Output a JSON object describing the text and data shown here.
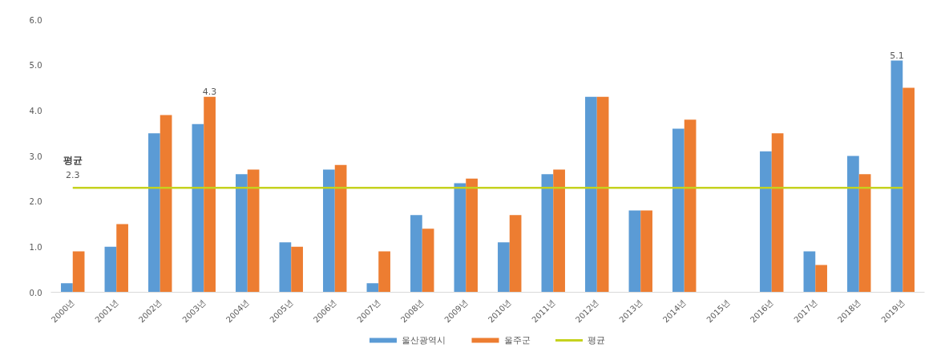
{
  "chart_data": {
    "type": "bar",
    "categories": [
      "2000년",
      "2001년",
      "2002년",
      "2003년",
      "2004년",
      "2005년",
      "2006년",
      "2007년",
      "2008년",
      "2009년",
      "2010년",
      "2011년",
      "2012년",
      "2013년",
      "2014년",
      "2015년",
      "2016년",
      "2017년",
      "2018년",
      "2019년"
    ],
    "series": [
      {
        "name": "울산광역시",
        "color": "#5b9bd5",
        "values": [
          0.2,
          1.0,
          3.5,
          3.7,
          2.6,
          1.1,
          2.7,
          0.2,
          1.7,
          2.4,
          1.1,
          2.6,
          4.3,
          1.8,
          3.6,
          null,
          3.1,
          0.9,
          3.0,
          5.1
        ],
        "value_labels": [
          null,
          null,
          null,
          null,
          null,
          null,
          null,
          null,
          null,
          null,
          null,
          null,
          null,
          null,
          null,
          null,
          null,
          null,
          null,
          "5.1"
        ]
      },
      {
        "name": "울주군",
        "color": "#ed7d31",
        "values": [
          0.9,
          1.5,
          3.9,
          4.3,
          2.7,
          1.0,
          2.8,
          0.9,
          1.4,
          2.5,
          1.7,
          2.7,
          4.3,
          1.8,
          3.8,
          null,
          3.5,
          0.6,
          2.6,
          4.5
        ],
        "value_labels": [
          null,
          null,
          null,
          "4.3",
          null,
          null,
          null,
          null,
          null,
          null,
          null,
          null,
          null,
          null,
          null,
          null,
          null,
          null,
          null,
          null
        ]
      },
      {
        "name": "평균",
        "type": "line",
        "color": "#c5d21e",
        "values": [
          2.3,
          2.3,
          2.3,
          2.3,
          2.3,
          2.3,
          2.3,
          2.3,
          2.3,
          2.3,
          2.3,
          2.3,
          2.3,
          2.3,
          2.3,
          2.3,
          2.3,
          2.3,
          2.3,
          2.3
        ],
        "value_labels": [
          "2.3",
          null,
          null,
          null,
          null,
          null,
          null,
          null,
          null,
          null,
          null,
          null,
          null,
          null,
          null,
          null,
          null,
          null,
          null,
          null
        ]
      }
    ],
    "annotations": [
      "평균"
    ],
    "ylim": [
      0,
      6
    ],
    "yticks": [
      {
        "value": 0,
        "label": "0.0"
      },
      {
        "value": 1,
        "label": "1.0"
      },
      {
        "value": 2,
        "label": "2.0"
      },
      {
        "value": 3,
        "label": "3.0"
      },
      {
        "value": 4,
        "label": "4.0"
      },
      {
        "value": 5,
        "label": "5.0"
      },
      {
        "value": 6,
        "label": "6.0"
      }
    ],
    "grid": false,
    "legend": "bottom"
  }
}
